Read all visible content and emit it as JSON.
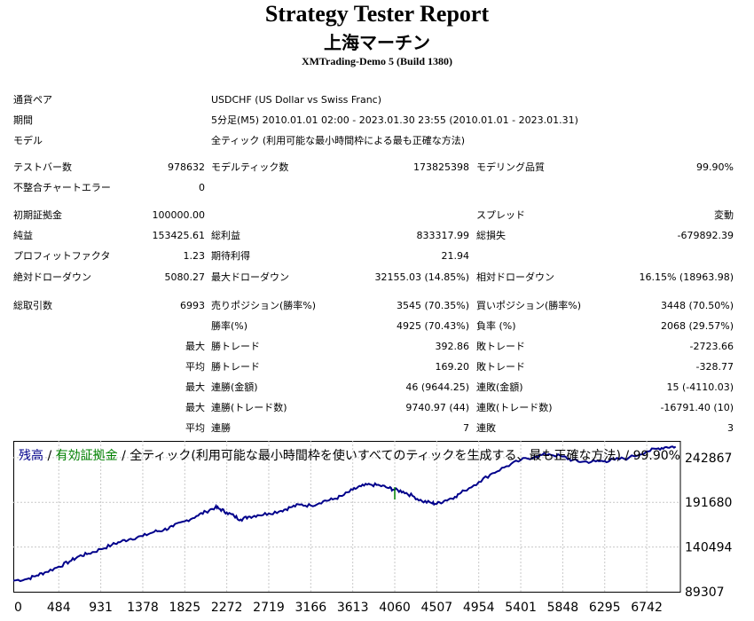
{
  "report": {
    "title": "Strategy Tester Report",
    "ea_name": "上海マーチン",
    "server_build": "XMTrading-Demo 5 (Build 1380)"
  },
  "summary": {
    "symbol_label": "通貨ペア",
    "symbol_value": "USDCHF (US Dollar vs Swiss Franc)",
    "period_label": "期間",
    "period_value": "5分足(M5) 2010.01.01 02:00 - 2023.01.30 23:55 (2010.01.01 - 2023.01.31)",
    "model_label": "モデル",
    "model_value": "全ティック (利用可能な最小時間枠による最も正確な方法)"
  },
  "stats": {
    "bars_label": "テストバー数",
    "bars_value": "978632",
    "ticks_label": "モデルティック数",
    "ticks_value": "173825398",
    "quality_label": "モデリング品質",
    "quality_value": "99.90%",
    "errors_label": "不整合チャートエラー",
    "errors_value": "0",
    "deposit_label": "初期証拠金",
    "deposit_value": "100000.00",
    "spread_label": "スプレッド",
    "spread_value": "変動",
    "net_label": "純益",
    "net_value": "153425.61",
    "gross_profit_label": "総利益",
    "gross_profit_value": "833317.99",
    "gross_loss_label": "総損失",
    "gross_loss_value": "-679892.39",
    "pf_label": "プロフィットファクタ",
    "pf_value": "1.23",
    "payoff_label": "期待利得",
    "payoff_value": "21.94",
    "abs_dd_label": "絶対ドローダウン",
    "abs_dd_value": "5080.27",
    "max_dd_label": "最大ドローダウン",
    "max_dd_value": "32155.03 (14.85%)",
    "rel_dd_label": "相対ドローダウン",
    "rel_dd_value": "16.15% (18963.98)",
    "total_trades_label": "総取引数",
    "total_trades_value": "6993",
    "short_label": "売りポジション(勝率%)",
    "short_value": "3545 (70.35%)",
    "long_label": "買いポジション(勝率%)",
    "long_value": "3448 (70.50%)",
    "win_rate_label": "勝率(%)",
    "win_rate_value": "4925 (70.43%)",
    "loss_rate_label": "負率 (%)",
    "loss_rate_value": "2068 (29.57%)",
    "max_label": "最大",
    "avg_label": "平均",
    "max_win_label": "勝トレード",
    "max_win_value": "392.86",
    "max_loss_label": "敗トレード",
    "max_loss_value": "-2723.66",
    "avg_win_label": "勝トレード",
    "avg_win_value": "169.20",
    "avg_loss_label": "敗トレード",
    "avg_loss_value": "-328.77",
    "cons_wins_label": "連勝(金額)",
    "cons_wins_value": "46 (9644.25)",
    "cons_losses_label": "連敗(金額)",
    "cons_losses_value": "15 (-4110.03)",
    "cons_profit_label": "連勝(トレード数)",
    "cons_profit_value": "9740.97 (44)",
    "cons_loss_label": "連敗(トレード数)",
    "cons_loss_value": "-16791.40 (10)",
    "avg_cons_wins_label": "連勝",
    "avg_cons_wins_value": "7",
    "avg_cons_losses_label": "連敗",
    "avg_cons_losses_value": "3"
  },
  "chart_header": {
    "balance": "残高",
    "sep1": " / ",
    "equity": "有効証拠金",
    "sep2": " / ",
    "model": "全ティック(利用可能な最小時間枠を使いすべてのティックを生成する、最も正確な方法)",
    "sep3": " / ",
    "quality": "99.90%"
  },
  "chart_data": {
    "type": "line",
    "x_ticks": [
      "0",
      "484",
      "931",
      "1378",
      "1825",
      "2272",
      "2719",
      "3166",
      "3613",
      "4060",
      "4507",
      "4954",
      "5401",
      "5848",
      "6295",
      "6742"
    ],
    "y_ticks": [
      "242867",
      "191680",
      "140494",
      "89307"
    ],
    "xlim": [
      0,
      7100
    ],
    "ylim": [
      89307,
      262000
    ],
    "grid": true,
    "colors": {
      "balance": "#00008b",
      "equity": "#008000"
    },
    "series": [
      {
        "name": "残高",
        "x": [
          0,
          150,
          250,
          350,
          484,
          600,
          700,
          800,
          931,
          1050,
          1150,
          1250,
          1378,
          1500,
          1600,
          1700,
          1825,
          1950,
          2050,
          2150,
          2200,
          2272,
          2350,
          2420,
          2500,
          2600,
          2719,
          2850,
          2950,
          3050,
          3166,
          3300,
          3400,
          3500,
          3613,
          3700,
          3800,
          3900,
          4000,
          4060,
          4150,
          4250,
          4350,
          4450,
          4507,
          4600,
          4700,
          4800,
          4954,
          5100,
          5250,
          5401,
          5550,
          5700,
          5848,
          5950,
          6050,
          6200,
          6295,
          6400,
          6550,
          6742,
          6850,
          6950,
          7050
        ],
        "y": [
          102000,
          104000,
          108000,
          112000,
          118000,
          124000,
          130000,
          133000,
          138000,
          143000,
          147000,
          150000,
          153000,
          158000,
          160000,
          164000,
          170000,
          176000,
          181000,
          186000,
          184000,
          180000,
          176000,
          172000,
          175000,
          177000,
          179000,
          182000,
          186000,
          189000,
          188000,
          193000,
          195000,
          199000,
          206000,
          210000,
          212000,
          211000,
          208000,
          206000,
          204000,
          199000,
          193000,
          191000,
          190000,
          194000,
          198000,
          205000,
          215000,
          225000,
          233000,
          240000,
          244000,
          247000,
          244000,
          240000,
          238000,
          238500,
          239000,
          240500,
          242500,
          250000,
          253000,
          255000,
          255500
        ]
      },
      {
        "name": "有効証拠金",
        "x": [
          4060
        ],
        "y": [
          203000
        ]
      }
    ]
  }
}
